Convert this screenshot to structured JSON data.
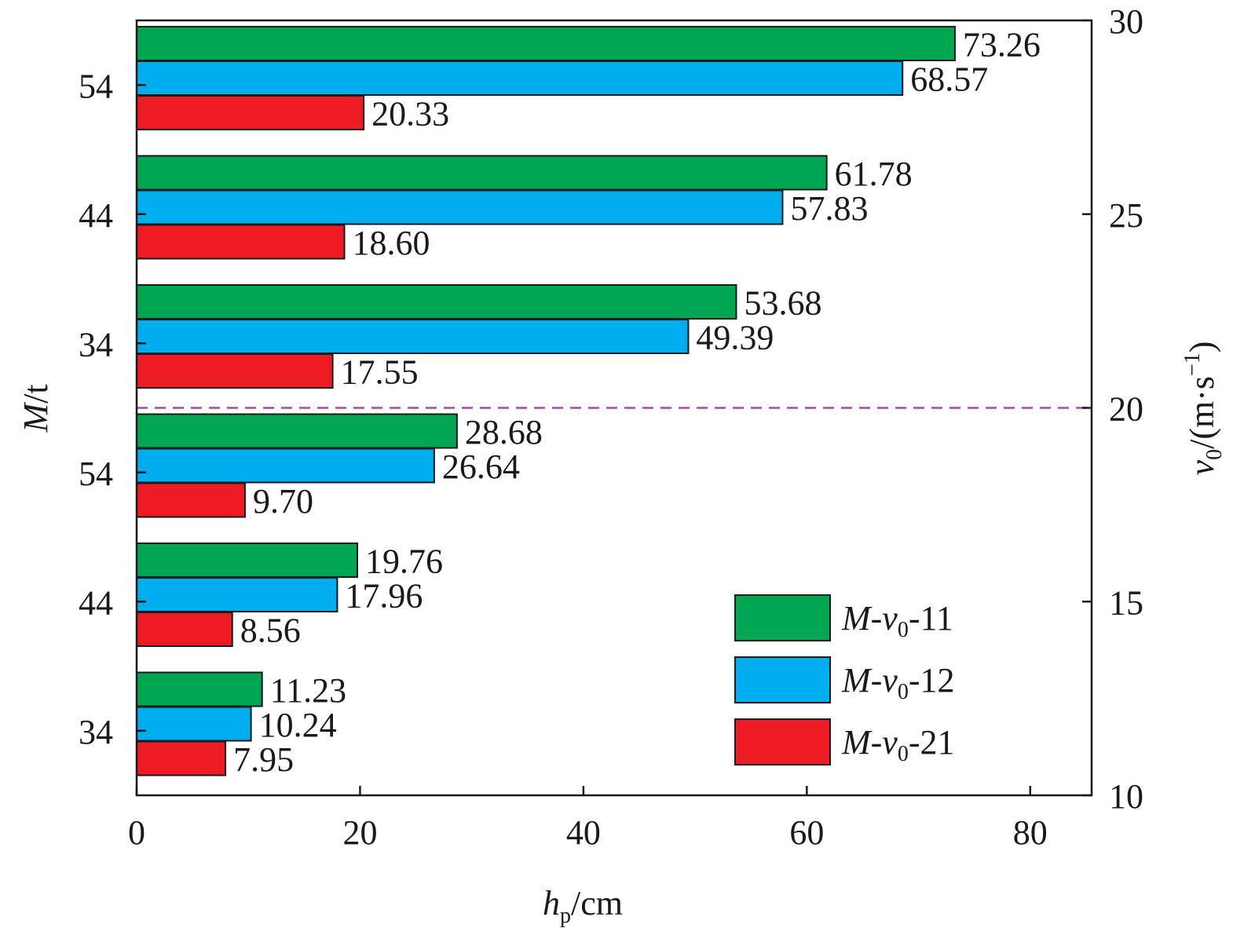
{
  "chart_data": {
    "type": "bar",
    "orientation": "horizontal",
    "categories": [
      "54",
      "44",
      "34",
      "54",
      "44",
      "34"
    ],
    "series": [
      {
        "name": "M-v0-11",
        "color": "#00a651",
        "values": [
          73.26,
          61.78,
          53.68,
          28.68,
          19.76,
          11.23
        ]
      },
      {
        "name": "M-v0-12",
        "color": "#00aeef",
        "values": [
          68.57,
          57.83,
          49.39,
          26.64,
          17.96,
          10.24
        ]
      },
      {
        "name": "M-v0-21",
        "color": "#ed1c24",
        "values": [
          20.33,
          18.6,
          17.55,
          9.7,
          8.56,
          7.95
        ]
      }
    ],
    "value_labels": [
      [
        "73.26",
        "68.57",
        "20.33"
      ],
      [
        "61.78",
        "57.83",
        "18.60"
      ],
      [
        "53.68",
        "49.39",
        "17.55"
      ],
      [
        "28.68",
        "26.64",
        "9.70"
      ],
      [
        "19.76",
        "17.96",
        "8.56"
      ],
      [
        "11.23",
        "10.24",
        "7.95"
      ]
    ],
    "xlabel": {
      "main": "h",
      "sub": "p",
      "unit": "/cm"
    },
    "ylabel_left": {
      "main": "M",
      "unit": "/t"
    },
    "ylabel_right": {
      "main": "v",
      "sub": "0",
      "unit": "/(m·s",
      "sup": "−1",
      "close": ")"
    },
    "x_ticks": [
      "0",
      "20",
      "40",
      "60",
      "80"
    ],
    "xlim": [
      0,
      85.5
    ],
    "y_right_ticks": [
      "10",
      "15",
      "20",
      "25",
      "30"
    ],
    "y_right_lim": [
      10,
      30
    ],
    "divider": {
      "value": 20,
      "axis": "right",
      "style": "dashed",
      "color": "#a54ba8"
    },
    "legend": {
      "placement": "bottom-right",
      "entries": [
        {
          "pre": "M",
          "mid": "-v",
          "sub": "0",
          "post": "-11"
        },
        {
          "pre": "M",
          "mid": "-v",
          "sub": "0",
          "post": "-12"
        },
        {
          "pre": "M",
          "mid": "-v",
          "sub": "0",
          "post": "-21"
        }
      ]
    }
  }
}
